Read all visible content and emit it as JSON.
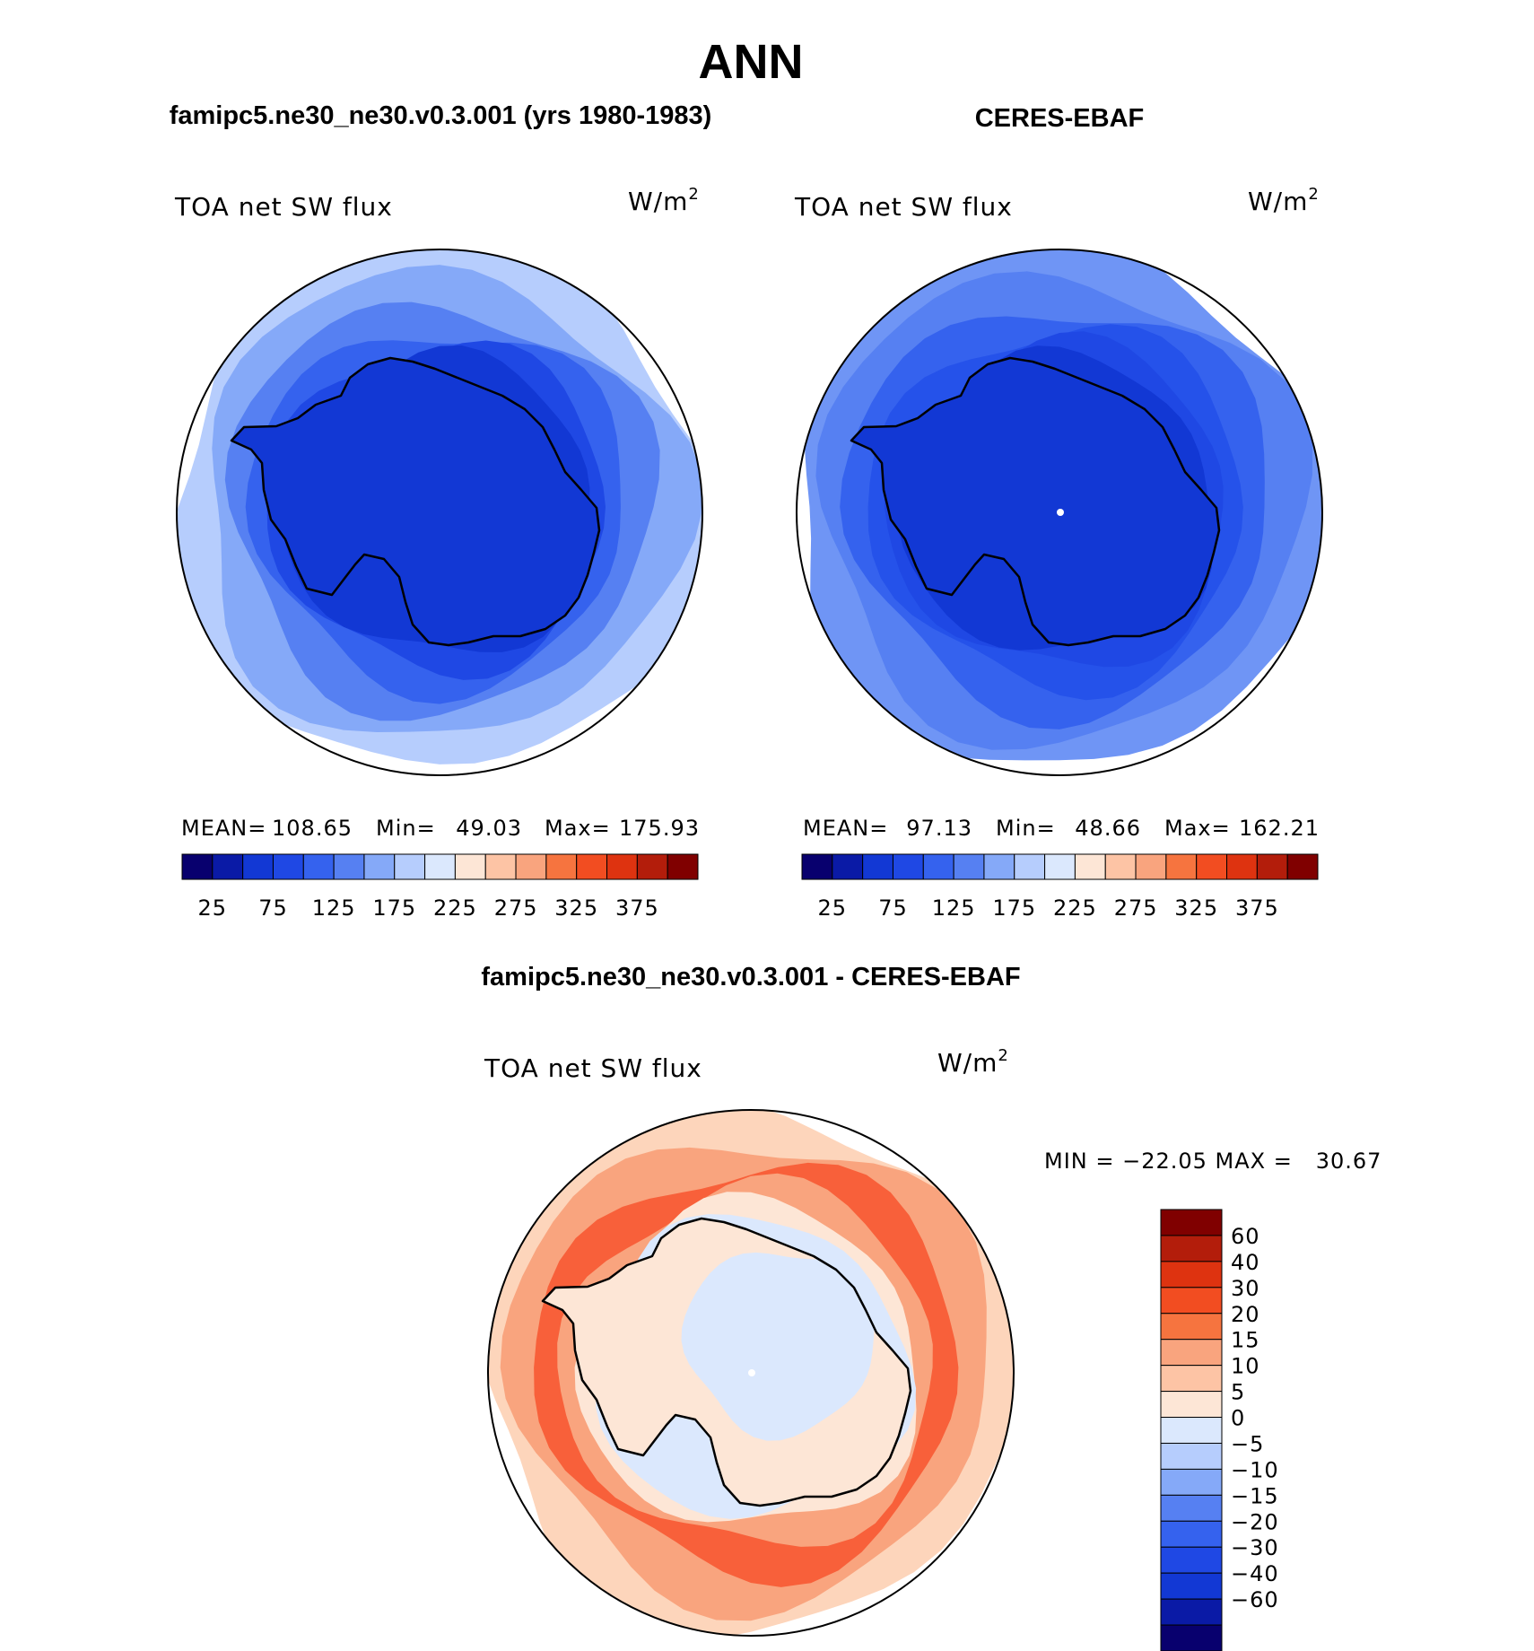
{
  "figure": {
    "main_title": "ANN",
    "left_panel_title": "famipc5.ne30_ne30.v0.3.001 (yrs 1980-1983)",
    "right_panel_title": "CERES-EBAF",
    "diff_panel_title": "famipc5.ne30_ne30.v0.3.001 - CERES-EBAF"
  },
  "chart_data": [
    {
      "type": "heatmap",
      "projection": "south-polar-stereographic",
      "variable": "TOA net SW flux",
      "units_base": "W/m",
      "units_exp": "2",
      "stats": {
        "mean_label": "MEAN=",
        "mean": "108.65",
        "min_label": "Min=",
        "min": "49.03",
        "max_label": "Max=",
        "max": "175.93"
      },
      "contour_levels": [
        25,
        50,
        75,
        100,
        125,
        150,
        175,
        200,
        225,
        250,
        275,
        300,
        325,
        350,
        375
      ],
      "colorbar_ticks": [
        "25",
        "75",
        "125",
        "175",
        "225",
        "275",
        "325",
        "375"
      ],
      "field_bands_outer_to_inner": [
        "#b6cdfd",
        "#85a9f8",
        "#5680f2",
        "#3562ee",
        "#1f48e4",
        "#1238d4"
      ]
    },
    {
      "type": "heatmap",
      "projection": "south-polar-stereographic",
      "variable": "TOA net SW flux",
      "units_base": "W/m",
      "units_exp": "2",
      "stats": {
        "mean_label": "MEAN=",
        "mean": "97.13",
        "min_label": "Min=",
        "min": "48.66",
        "max_label": "Max=",
        "max": "162.21"
      },
      "contour_levels": [
        25,
        50,
        75,
        100,
        125,
        150,
        175,
        200,
        225,
        250,
        275,
        300,
        325,
        350,
        375
      ],
      "colorbar_ticks": [
        "25",
        "75",
        "125",
        "175",
        "225",
        "275",
        "325",
        "375"
      ],
      "field_bands_outer_to_inner": [
        "#6f95f5",
        "#5680f2",
        "#3562ee",
        "#2552ea",
        "#1f48e4",
        "#1238d4"
      ]
    },
    {
      "type": "heatmap",
      "projection": "south-polar-stereographic",
      "variable": "TOA net SW flux",
      "units_base": "W/m",
      "units_exp": "2",
      "stats_text": "MIN = −22.05 MAX =   30.67",
      "min": -22.05,
      "max": 30.67,
      "colorbar_ticks_top_to_bottom": [
        "60",
        "40",
        "30",
        "20",
        "15",
        "10",
        "5",
        "0",
        "−5",
        "−10",
        "−15",
        "−20",
        "−30",
        "−40",
        "−60"
      ],
      "field_bands_outer_to_inner": [
        "#fdd5bb",
        "#f9a47e",
        "#f8603a",
        "#f9a47e",
        "#fde6d6",
        "#dbe8fd"
      ]
    }
  ],
  "palettes": {
    "full_16": [
      "#08006e",
      "#0a1aa6",
      "#1238d4",
      "#1f48e4",
      "#3562ee",
      "#5680f2",
      "#85a9f8",
      "#b6cdfd",
      "#dbe8fd",
      "#fde6d6",
      "#fdc4a5",
      "#f9a47e",
      "#f6743f",
      "#f24d21",
      "#de3310",
      "#b31d0b",
      "#800000"
    ],
    "diff_16_top_to_bottom": [
      "#800000",
      "#b31d0b",
      "#de3310",
      "#f24d21",
      "#f6743f",
      "#f9a47e",
      "#fdc4a5",
      "#fde6d6",
      "#dbe8fd",
      "#b6cdfd",
      "#85a9f8",
      "#5680f2",
      "#3562ee",
      "#1f48e4",
      "#1238d4",
      "#0a1aa6",
      "#08006e"
    ]
  },
  "colors": {
    "coast": "#000000",
    "pole_marker": "#ffffff"
  }
}
